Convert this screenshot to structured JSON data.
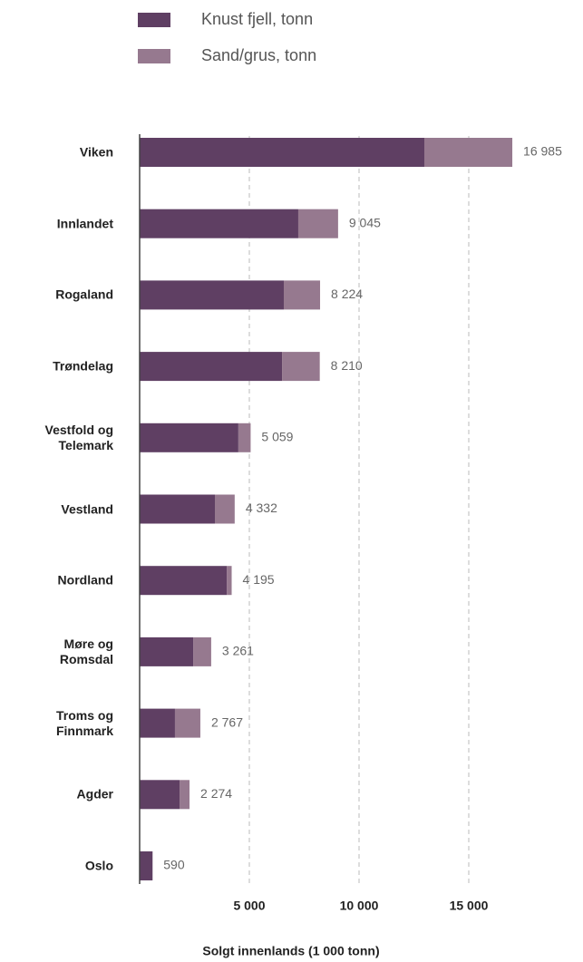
{
  "chart_data": {
    "type": "stacked-barh",
    "xlabel": "Solgt innenlands (1 000 tonn)",
    "categories": [
      "Viken",
      "Innlandet",
      "Rogaland",
      "Trøndelag",
      "Vestfold og Telemark",
      "Vestland",
      "Nordland",
      "Møre og Romsdal",
      "Troms og Finnmark",
      "Agder",
      "Oslo"
    ],
    "series": [
      {
        "name": "Knust fjell, tonn",
        "color": "#5f3f63",
        "values": [
          12975,
          7230,
          6570,
          6490,
          4500,
          3430,
          3970,
          2440,
          1610,
          1820,
          590
        ]
      },
      {
        "name": "Sand/grus, tonn",
        "color": "#96798f",
        "values": [
          4010,
          1815,
          1654,
          1720,
          559,
          902,
          225,
          821,
          1157,
          454,
          0
        ]
      }
    ],
    "totals": [
      {
        "value": 16985,
        "label": "16 985"
      },
      {
        "value": 9045,
        "label": "9 045"
      },
      {
        "value": 8224,
        "label": "8 224"
      },
      {
        "value": 8210,
        "label": "8 210"
      },
      {
        "value": 5059,
        "label": "5 059"
      },
      {
        "value": 4332,
        "label": "4 332"
      },
      {
        "value": 4195,
        "label": "4 195"
      },
      {
        "value": 3261,
        "label": "3 261"
      },
      {
        "value": 2767,
        "label": "2 767"
      },
      {
        "value": 2274,
        "label": "2 274"
      },
      {
        "value": 590,
        "label": "590"
      }
    ],
    "xlim": [
      0,
      17500
    ],
    "xticks": [
      {
        "value": 5000,
        "label": "5 000"
      },
      {
        "value": 10000,
        "label": "10 000"
      },
      {
        "value": 15000,
        "label": "15 000"
      }
    ],
    "grid": true
  }
}
